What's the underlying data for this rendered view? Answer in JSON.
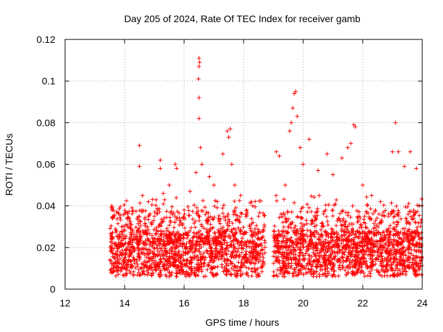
{
  "chart_data": {
    "type": "scatter",
    "title": "Day 205 of 2024, Rate Of TEC Index for receiver gamb",
    "xlabel": "GPS time / hours",
    "ylabel": "ROTI / TECUs",
    "xlim": [
      12,
      24
    ],
    "ylim": [
      0,
      0.12
    ],
    "xticks": [
      12,
      14,
      16,
      18,
      20,
      22,
      24
    ],
    "xtick_labels": [
      "12",
      "14",
      "16",
      "18",
      "20",
      "22",
      "24"
    ],
    "yticks": [
      0,
      0.02,
      0.04,
      0.06,
      0.08,
      0.1,
      0.12
    ],
    "ytick_labels": [
      "0",
      "0.02",
      "0.04",
      "0.06",
      "0.08",
      "0.1",
      "0.12"
    ],
    "grid": true,
    "marker": "+",
    "color": "#ff0000",
    "data_start_hour": 13.5,
    "data_end_hour": 24.0,
    "series": [
      {
        "name": "ROTI",
        "points": [
          [
            13.55,
            0.039
          ],
          [
            13.58,
            0.038
          ],
          [
            13.6,
            0.025
          ],
          [
            13.65,
            0.012
          ],
          [
            13.7,
            0.009
          ],
          [
            13.8,
            0.02
          ],
          [
            13.9,
            0.03
          ],
          [
            14.0,
            0.028
          ],
          [
            14.1,
            0.034
          ],
          [
            14.25,
            0.039
          ],
          [
            14.5,
            0.069
          ],
          [
            14.5,
            0.059
          ],
          [
            14.6,
            0.045
          ],
          [
            14.8,
            0.042
          ],
          [
            15.0,
            0.035
          ],
          [
            15.2,
            0.062
          ],
          [
            15.2,
            0.058
          ],
          [
            15.3,
            0.046
          ],
          [
            15.5,
            0.05
          ],
          [
            15.7,
            0.06
          ],
          [
            15.75,
            0.058
          ],
          [
            16.0,
            0.038
          ],
          [
            16.2,
            0.047
          ],
          [
            16.4,
            0.056
          ],
          [
            16.5,
            0.111
          ],
          [
            16.52,
            0.109
          ],
          [
            16.5,
            0.107
          ],
          [
            16.48,
            0.101
          ],
          [
            16.5,
            0.092
          ],
          [
            16.5,
            0.082
          ],
          [
            16.55,
            0.068
          ],
          [
            16.6,
            0.06
          ],
          [
            16.85,
            0.054
          ],
          [
            17.0,
            0.05
          ],
          [
            17.3,
            0.065
          ],
          [
            17.45,
            0.076
          ],
          [
            17.5,
            0.073
          ],
          [
            17.55,
            0.077
          ],
          [
            17.6,
            0.06
          ],
          [
            17.7,
            0.05
          ],
          [
            17.9,
            0.045
          ],
          [
            18.1,
            0.038
          ],
          [
            18.3,
            0.04
          ],
          [
            18.5,
            0.035
          ],
          [
            18.7,
            0.03
          ],
          [
            19.1,
            0.066
          ],
          [
            19.2,
            0.064
          ],
          [
            19.4,
            0.05
          ],
          [
            19.55,
            0.076
          ],
          [
            19.6,
            0.08
          ],
          [
            19.65,
            0.087
          ],
          [
            19.7,
            0.094
          ],
          [
            19.75,
            0.095
          ],
          [
            19.8,
            0.083
          ],
          [
            19.9,
            0.068
          ],
          [
            20.0,
            0.06
          ],
          [
            20.2,
            0.072
          ],
          [
            20.5,
            0.057
          ],
          [
            20.8,
            0.065
          ],
          [
            21.0,
            0.055
          ],
          [
            21.3,
            0.063
          ],
          [
            21.5,
            0.068
          ],
          [
            21.6,
            0.07
          ],
          [
            21.7,
            0.079
          ],
          [
            21.75,
            0.078
          ],
          [
            22.0,
            0.05
          ],
          [
            22.3,
            0.045
          ],
          [
            22.6,
            0.042
          ],
          [
            23.0,
            0.066
          ],
          [
            23.1,
            0.08
          ],
          [
            23.2,
            0.066
          ],
          [
            23.4,
            0.059
          ],
          [
            23.6,
            0.066
          ],
          [
            23.8,
            0.058
          ],
          [
            23.9,
            0.04
          ]
        ]
      }
    ]
  }
}
